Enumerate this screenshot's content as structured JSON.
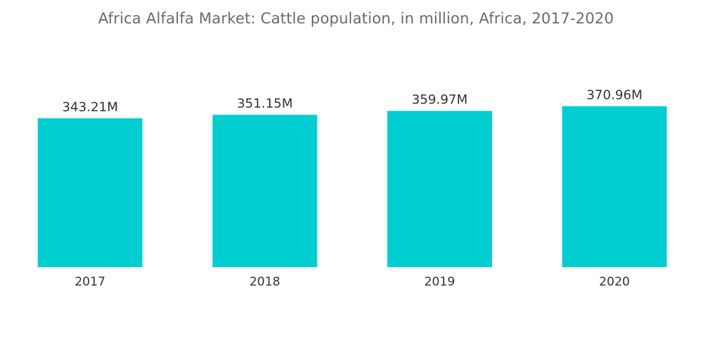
{
  "chart_data": {
    "type": "bar",
    "title": "Africa Alfalfa Market: Cattle population, in million, Africa, 2017-2020",
    "categories": [
      "2017",
      "2018",
      "2019",
      "2020"
    ],
    "values": [
      343.21,
      351.15,
      359.97,
      370.96
    ],
    "data_labels": [
      "343.21M",
      "351.15M",
      "359.97M",
      "370.96M"
    ],
    "xlabel": "",
    "ylabel": "",
    "ylim": [
      0,
      380
    ],
    "grid": false,
    "legend": "none",
    "bar_color": "#00CED1"
  }
}
